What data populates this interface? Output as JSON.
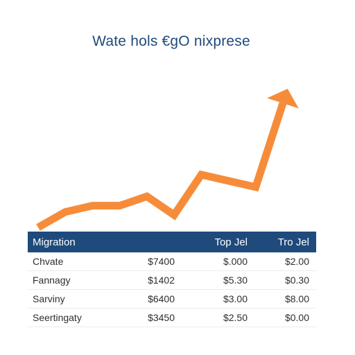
{
  "chart_data": {
    "type": "line",
    "title": "Wate hols €gO nixprese",
    "xlabel": "",
    "ylabel": "",
    "grid": false,
    "legend": "none",
    "trend_values": [
      0,
      5,
      7,
      7,
      10,
      4,
      17,
      15,
      13,
      40
    ],
    "ylim": [
      0,
      42
    ],
    "color": "#f68c3a"
  },
  "table": {
    "header": [
      "Migration",
      "",
      "Top Jel",
      "Tro Jel"
    ],
    "header_color": "#1f4a7c",
    "rows": [
      [
        "Chvate",
        "$7400",
        "$.000",
        "$2.00"
      ],
      [
        "Fannagy",
        "$1402",
        "$5.30",
        "$0.30"
      ],
      [
        "Sarviny",
        "$6400",
        "$3.00",
        "$8.00"
      ],
      [
        "Seertingaty",
        "$3450",
        "$2.50",
        "$0.00"
      ]
    ]
  }
}
